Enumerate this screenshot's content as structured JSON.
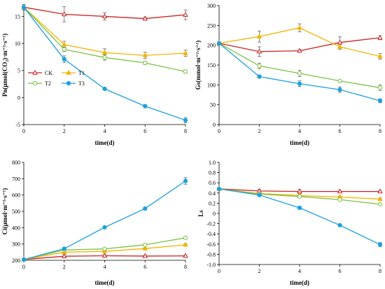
{
  "series_meta": [
    {
      "key": "CK",
      "color": "#cc2222",
      "marker": "triangle-open"
    },
    {
      "key": "T1",
      "color": "#f2b400",
      "marker": "triangle-filled"
    },
    {
      "key": "T2",
      "color": "#7cc242",
      "marker": "circle-open"
    },
    {
      "key": "T3",
      "color": "#1ba1e2",
      "marker": "circle-filled"
    }
  ],
  "chart_data": [
    {
      "id": "pn",
      "type": "line",
      "ylabel": "Pn(μmol(CO₂)·m⁻²·s⁻¹)",
      "xlabel": "time(d)",
      "x": [
        0,
        2,
        4,
        6,
        8
      ],
      "xlim": [
        0,
        8
      ],
      "ylim": [
        -5,
        17
      ],
      "yticks": [
        -5,
        0,
        5,
        10,
        15
      ],
      "grid": false,
      "legend": "lower-left",
      "series": [
        {
          "name": "CK",
          "values": [
            16.7,
            15.4,
            15.0,
            14.6,
            15.3
          ],
          "err": [
            0.5,
            1.4,
            0.7,
            0.3,
            0.9
          ]
        },
        {
          "name": "T1",
          "values": [
            16.7,
            9.8,
            8.3,
            7.8,
            8.2
          ],
          "err": [
            0.5,
            0.6,
            0.7,
            0.6,
            0.6
          ]
        },
        {
          "name": "T2",
          "values": [
            16.7,
            8.9,
            7.4,
            6.4,
            4.8
          ],
          "err": [
            0.5,
            0.4,
            0.5,
            0.3,
            0.3
          ]
        },
        {
          "name": "T3",
          "values": [
            16.7,
            7.1,
            1.6,
            -1.6,
            -4.2
          ],
          "err": [
            0.5,
            0.6,
            0.2,
            0.3,
            0.5
          ]
        }
      ]
    },
    {
      "id": "gs",
      "type": "line",
      "ylabel": "Gs(mmol·m⁻²·s⁻¹)",
      "xlabel": "time(d)",
      "x": [
        0,
        2,
        4,
        6,
        8
      ],
      "xlim": [
        0,
        8
      ],
      "ylim": [
        0,
        300
      ],
      "yticks": [
        0,
        50,
        100,
        150,
        200,
        250,
        300
      ],
      "grid": false,
      "series": [
        {
          "name": "CK",
          "values": [
            205,
            184,
            186,
            207,
            219
          ],
          "err": [
            3,
            12,
            3,
            14,
            5
          ]
        },
        {
          "name": "T1",
          "values": [
            205,
            222,
            244,
            196,
            172
          ],
          "err": [
            3,
            14,
            10,
            6,
            7
          ]
        },
        {
          "name": "T2",
          "values": [
            205,
            148,
            129,
            110,
            93
          ],
          "err": [
            3,
            7,
            8,
            3,
            7
          ]
        },
        {
          "name": "T3",
          "values": [
            205,
            121,
            103,
            88,
            60
          ],
          "err": [
            3,
            4,
            7,
            7,
            5
          ]
        }
      ]
    },
    {
      "id": "ci",
      "type": "line",
      "ylabel": "Ci(μmol·m⁻²·s⁻¹)",
      "xlabel": "time(d)",
      "x": [
        0,
        2,
        4,
        6,
        8
      ],
      "xlim": [
        0,
        8
      ],
      "ylim": [
        200,
        800
      ],
      "yticks": [
        200,
        300,
        400,
        500,
        600,
        700,
        800
      ],
      "grid": false,
      "series": [
        {
          "name": "CK",
          "values": [
            205,
            225,
            228,
            226,
            227
          ],
          "err": [
            3,
            10,
            8,
            5,
            5
          ]
        },
        {
          "name": "T1",
          "values": [
            205,
            250,
            255,
            272,
            295
          ],
          "err": [
            3,
            6,
            5,
            5,
            6
          ]
        },
        {
          "name": "T2",
          "values": [
            205,
            263,
            270,
            295,
            338
          ],
          "err": [
            3,
            6,
            5,
            5,
            6
          ]
        },
        {
          "name": "T3",
          "values": [
            205,
            271,
            402,
            517,
            686
          ],
          "err": [
            3,
            6,
            5,
            8,
            20
          ]
        }
      ]
    },
    {
      "id": "ls",
      "type": "line",
      "ylabel": "Ls",
      "xlabel": "time(d)",
      "x": [
        0,
        2,
        4,
        6,
        8
      ],
      "xlim": [
        0,
        8
      ],
      "ylim": [
        -1.0,
        1.0
      ],
      "yticks": [
        -1.0,
        -0.8,
        -0.6,
        -0.4,
        -0.2,
        0,
        0.2,
        0.4,
        0.6,
        0.8,
        1.0
      ],
      "ytick_labels": [
        "-1.0",
        "-0.8",
        "-0.6",
        "-0.4",
        "-0.2",
        "0",
        "0.2",
        "0.4",
        "0.6",
        "0.8",
        "1.0"
      ],
      "grid": false,
      "series": [
        {
          "name": "CK",
          "values": [
            0.48,
            0.44,
            0.43,
            0.43,
            0.43
          ],
          "err": [
            0.02,
            0.03,
            0.04,
            0.02,
            0.02
          ]
        },
        {
          "name": "T1",
          "values": [
            0.48,
            0.39,
            0.35,
            0.32,
            0.28
          ],
          "err": [
            0.02,
            0.02,
            0.02,
            0.02,
            0.02
          ]
        },
        {
          "name": "T2",
          "values": [
            0.48,
            0.38,
            0.33,
            0.27,
            0.18
          ],
          "err": [
            0.02,
            0.02,
            0.02,
            0.02,
            0.02
          ]
        },
        {
          "name": "T3",
          "values": [
            0.48,
            0.36,
            0.11,
            -0.23,
            -0.61
          ],
          "err": [
            0.02,
            0.02,
            0.03,
            0.02,
            0.04
          ]
        }
      ]
    }
  ]
}
